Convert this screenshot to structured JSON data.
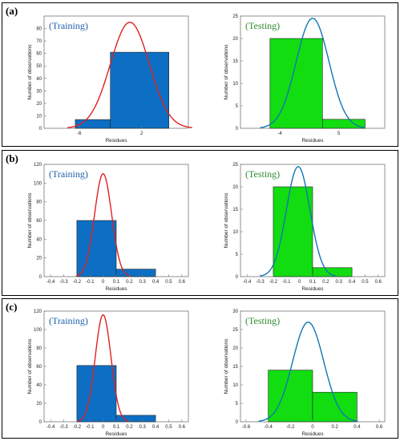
{
  "panels": [
    {
      "label": "(a)"
    },
    {
      "label": "(b)"
    },
    {
      "label": "(c)"
    }
  ],
  "colors": {
    "training_bar": "#0c6fc4",
    "training_curve": "#e02020",
    "testing_bar": "#11dd11",
    "testing_curve": "#1077b5",
    "training_title": "#1f5fa8",
    "testing_title": "#2e8b2e"
  },
  "chart_data": [
    {
      "panel": "(a)",
      "type": "bar",
      "title": "(Training)",
      "xlabel": "Residues",
      "ylabel": "Number of observations",
      "xlim": [
        -10.5,
        8
      ],
      "ylim": [
        0,
        90
      ],
      "x_ticks": [
        -6,
        2
      ],
      "y_ticks": [
        0,
        10,
        20,
        30,
        40,
        50,
        60,
        70,
        80
      ],
      "bins": [
        [
          -6.5,
          -2
        ],
        [
          -2,
          5.5
        ]
      ],
      "values": [
        7,
        61
      ],
      "fit_curve": {
        "mean": 0.5,
        "sd": 2.5,
        "peak": 85
      }
    },
    {
      "panel": "(a)",
      "type": "bar",
      "title": "(Testing)",
      "xlabel": "Residues",
      "ylabel": "Number of observations",
      "xlim": [
        -10,
        12
      ],
      "ylim": [
        0,
        25
      ],
      "x_ticks": [
        -4,
        5
      ],
      "y_ticks": [
        0,
        5,
        10,
        15,
        20,
        25
      ],
      "bins": [
        [
          -5.5,
          2.5
        ],
        [
          2.5,
          9
        ]
      ],
      "values": [
        20,
        2
      ],
      "fit_curve": {
        "mean": 1,
        "sd": 2.5,
        "peak": 24.5
      }
    },
    {
      "panel": "(b)",
      "type": "bar",
      "title": "(Training)",
      "xlabel": "Residues",
      "ylabel": "Number of observations",
      "xlim": [
        -0.45,
        0.65
      ],
      "ylim": [
        0,
        120
      ],
      "x_ticks": [
        -0.4,
        -0.3,
        -0.2,
        -0.1,
        0,
        0.1,
        0.2,
        0.3,
        0.4,
        0.5,
        0.6
      ],
      "y_ticks": [
        0,
        20,
        40,
        60,
        80,
        100,
        120
      ],
      "bins": [
        [
          -0.2,
          0.1
        ],
        [
          0.1,
          0.4
        ]
      ],
      "values": [
        60,
        8
      ],
      "fit_curve": {
        "mean": 0,
        "sd": 0.065,
        "peak": 110
      }
    },
    {
      "panel": "(b)",
      "type": "bar",
      "title": "(Testing)",
      "xlabel": "Residues",
      "ylabel": "Number of observations",
      "xlim": [
        -0.45,
        0.65
      ],
      "ylim": [
        0,
        25
      ],
      "x_ticks": [
        -0.4,
        -0.3,
        -0.2,
        -0.1,
        0,
        0.1,
        0.2,
        0.3,
        0.4,
        0.5,
        0.6
      ],
      "y_ticks": [
        0,
        5,
        10,
        15,
        20,
        25
      ],
      "bins": [
        [
          -0.2,
          0.1
        ],
        [
          0.1,
          0.4
        ]
      ],
      "values": [
        20,
        2
      ],
      "fit_curve": {
        "mean": -0.01,
        "sd": 0.09,
        "peak": 24.5
      }
    },
    {
      "panel": "(c)",
      "type": "bar",
      "title": "(Training)",
      "xlabel": "Residues",
      "ylabel": "Number of observations",
      "xlim": [
        -0.45,
        0.65
      ],
      "ylim": [
        0,
        120
      ],
      "x_ticks": [
        -0.4,
        -0.3,
        -0.2,
        -0.1,
        0,
        0.1,
        0.2,
        0.3,
        0.4,
        0.5,
        0.6
      ],
      "y_ticks": [
        0,
        20,
        40,
        60,
        80,
        100,
        120
      ],
      "bins": [
        [
          -0.2,
          0.1
        ],
        [
          0.1,
          0.4
        ]
      ],
      "values": [
        61,
        7
      ],
      "fit_curve": {
        "mean": 0,
        "sd": 0.06,
        "peak": 116
      }
    },
    {
      "panel": "(c)",
      "type": "bar",
      "title": "(Testing)",
      "xlabel": "Residues",
      "ylabel": "Number of observations",
      "xlim": [
        -0.65,
        0.65
      ],
      "ylim": [
        0,
        30
      ],
      "x_ticks": [
        -0.6,
        -0.4,
        -0.2,
        0,
        0.2,
        0.4,
        0.6
      ],
      "y_ticks": [
        0,
        5,
        10,
        15,
        20,
        25,
        30
      ],
      "bins": [
        [
          -0.4,
          0
        ],
        [
          0,
          0.4
        ]
      ],
      "values": [
        14,
        8
      ],
      "fit_curve": {
        "mean": -0.04,
        "sd": 0.14,
        "peak": 27
      }
    }
  ]
}
